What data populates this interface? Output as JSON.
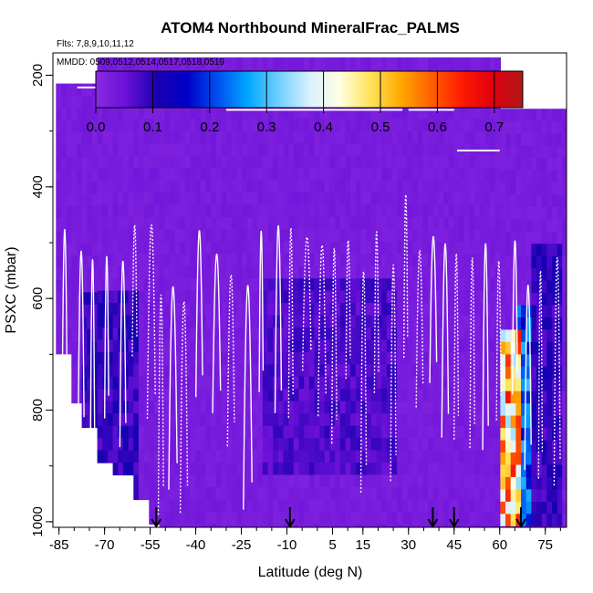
{
  "chart_data": {
    "type": "heatmap",
    "title": "ATOM4 Northbound MineralFrac_PALMS",
    "subtitle_flights": "Flts: 7,8,9,10,11,12",
    "subtitle_dates": "MMDD: 0509,0512,0514,0517,0518,0519",
    "xlabel": "Latitude (deg N)",
    "ylabel": "PSXC (mbar)",
    "xlim": [
      -87,
      82
    ],
    "ylim": [
      1010,
      160
    ],
    "x_ticks": [
      "-85",
      "-70",
      "-55",
      "-40",
      "-25",
      "-10",
      "5",
      "15",
      "30",
      "45",
      "60",
      "75"
    ],
    "x_tick_values": [
      -85,
      -70,
      -55,
      -40,
      -25,
      -10,
      5,
      15,
      30,
      45,
      60,
      75
    ],
    "y_ticks": [
      "200",
      "400",
      "600",
      "800",
      "1000"
    ],
    "y_tick_values": [
      200,
      400,
      600,
      800,
      1000
    ],
    "colorbar": {
      "range": [
        0,
        0.75
      ],
      "tick_labels": [
        "0.0",
        "0.1",
        "0.2",
        "0.3",
        "0.4",
        "0.5",
        "0.6",
        "0.7"
      ],
      "tick_values": [
        0.0,
        0.1,
        0.2,
        0.3,
        0.4,
        0.5,
        0.6,
        0.7
      ],
      "colors": [
        "#8a2be2",
        "#6a10d8",
        "#1a00b0",
        "#0000c8",
        "#0050f0",
        "#00a8ff",
        "#70d0ff",
        "#d8f0ff",
        "#ffffe0",
        "#ffe45a",
        "#ffa800",
        "#ff6000",
        "#ff1a00",
        "#e00010",
        "#b01818"
      ]
    },
    "flight_boundary_arrows_lat": [
      -53,
      -9,
      38,
      45,
      67
    ],
    "mineral_fraction_summary": [
      {
        "lat_range": [
          -86,
          -57
        ],
        "pressure_range": [
          160,
          560
        ],
        "value": 0.02
      },
      {
        "lat_range": [
          -78,
          -60
        ],
        "pressure_range": [
          570,
          940
        ],
        "value": 0.1
      },
      {
        "lat_range": [
          -56,
          60
        ],
        "pressure_range": [
          160,
          1010
        ],
        "value": 0.02
      },
      {
        "lat_range": [
          -18,
          25
        ],
        "pressure_range": [
          550,
          900
        ],
        "value": 0.08
      },
      {
        "lat_range": [
          60,
          66
        ],
        "pressure_range": [
          650,
          1000
        ],
        "value": 0.55
      },
      {
        "lat_range": [
          64,
          70
        ],
        "pressure_range": [
          600,
          1000
        ],
        "value": 0.25
      },
      {
        "lat_range": [
          70,
          80
        ],
        "pressure_range": [
          500,
          1000
        ],
        "value": 0.1
      }
    ]
  }
}
